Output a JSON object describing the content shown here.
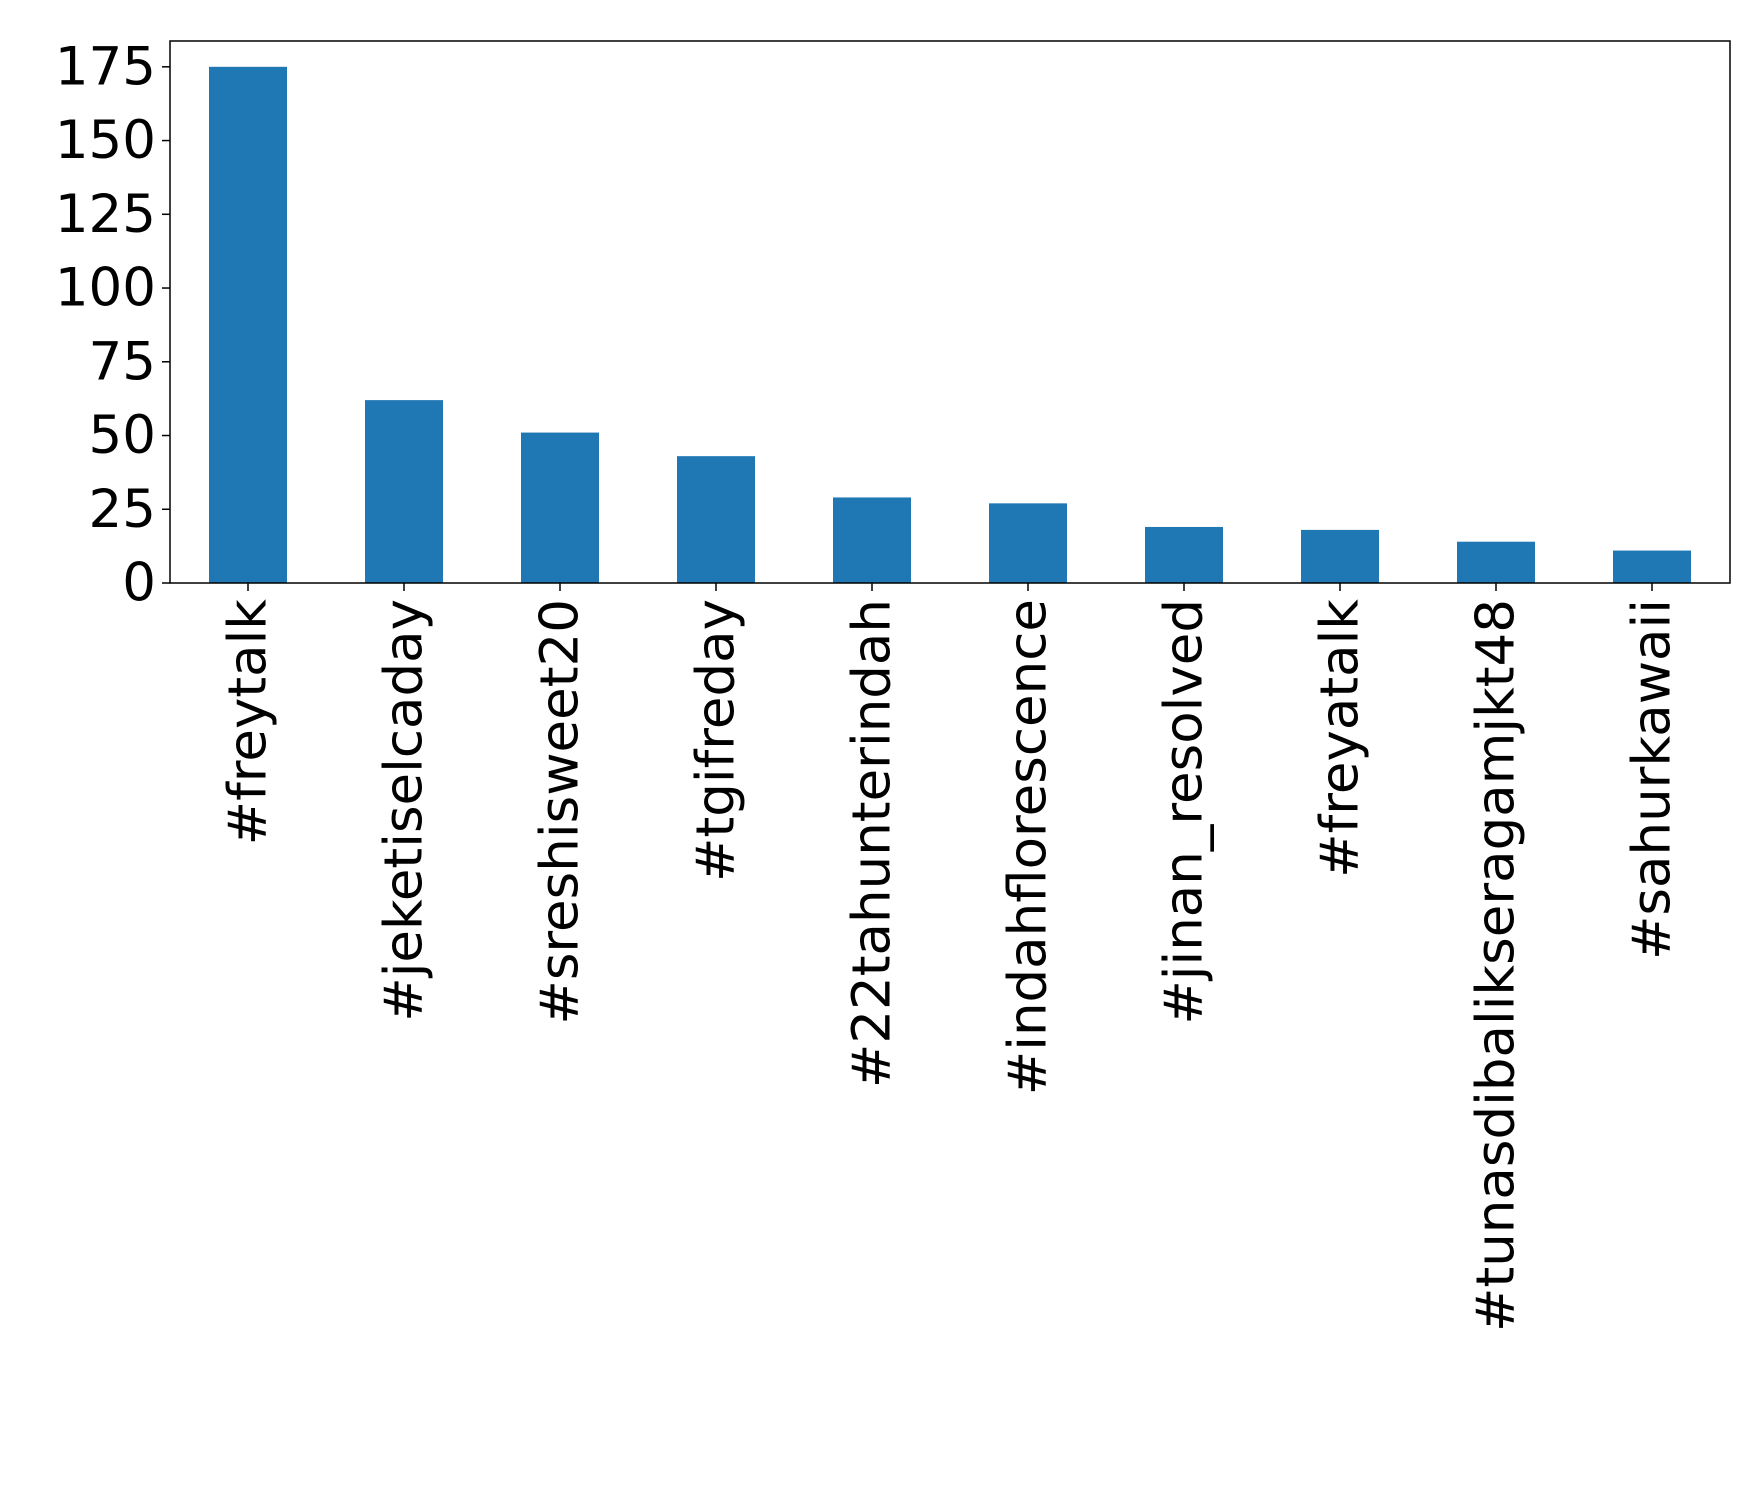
{
  "chart_data": {
    "type": "bar",
    "title": "",
    "xlabel": "",
    "ylabel": "",
    "categories": [
      "#freytalk",
      "#jeketiselcaday",
      "#sreshisweet20",
      "#tgifreday",
      "#22tahunterindah",
      "#indahflorescence",
      "#jinan_resolved",
      "#freyatalk",
      "#tunasdibalikseragamjkt48",
      "#sahurkawaii"
    ],
    "values": [
      175,
      62,
      51,
      43,
      29,
      27,
      19,
      18,
      14,
      11
    ],
    "ylim": [
      0,
      183.75
    ],
    "yticks": [
      0,
      25,
      50,
      75,
      100,
      125,
      150,
      175
    ],
    "grid": false,
    "colors": {
      "bar": "#1f77b4",
      "axis": "#000000",
      "text": "#000000",
      "background": "#ffffff"
    }
  }
}
